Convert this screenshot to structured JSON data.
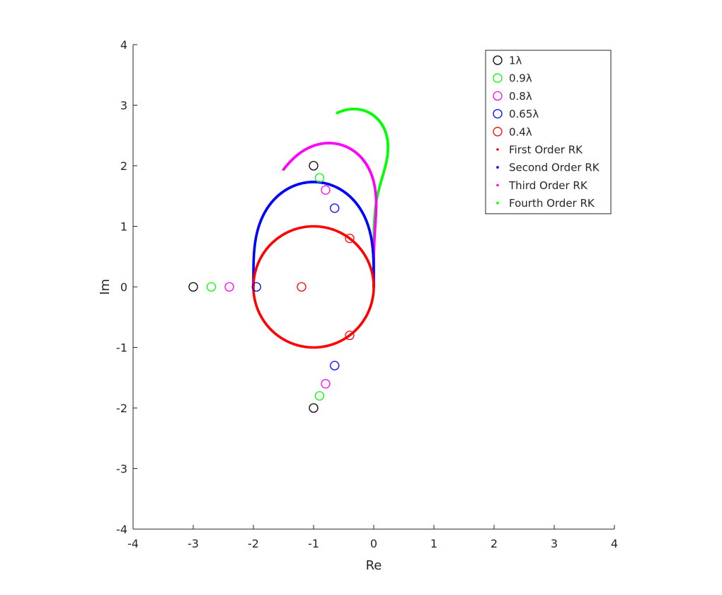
{
  "chart_data": {
    "type": "scatter",
    "xlabel": "Re",
    "ylabel": "Im",
    "xlim": [
      -4,
      4
    ],
    "ylim": [
      -4,
      4
    ],
    "x_ticks": [
      "-4",
      "-3",
      "-2",
      "-1",
      "0",
      "1",
      "2",
      "3",
      "4"
    ],
    "y_ticks": [
      "-4",
      "-3",
      "-2",
      "-1",
      "0",
      "1",
      "2",
      "3",
      "4"
    ],
    "grid": false,
    "legend_position": "top-right",
    "colors": {
      "black": "#000000",
      "green": "#00ff00",
      "magenta": "#ff00ff",
      "blue": "#0000ff",
      "red": "#ff0000"
    },
    "eigenvalue_series": [
      {
        "name": "1λ",
        "color": "#000000",
        "points": [
          [
            -3,
            0
          ],
          [
            -1,
            2
          ],
          [
            -1,
            -2
          ]
        ]
      },
      {
        "name": "0.9λ",
        "color": "#00ff00",
        "points": [
          [
            -2.7,
            0
          ],
          [
            -0.9,
            1.8
          ],
          [
            -0.9,
            -1.8
          ]
        ]
      },
      {
        "name": "0.8λ",
        "color": "#ff00ff",
        "points": [
          [
            -2.4,
            0
          ],
          [
            -0.8,
            1.6
          ],
          [
            -0.8,
            -1.6
          ]
        ]
      },
      {
        "name": "0.65λ",
        "color": "#0000ff",
        "points": [
          [
            -1.95,
            0
          ],
          [
            -0.65,
            1.3
          ],
          [
            -0.65,
            -1.3
          ]
        ]
      },
      {
        "name": "0.4λ",
        "color": "#ff0000",
        "points": [
          [
            -1.2,
            0
          ],
          [
            -0.4,
            0.8
          ],
          [
            -0.4,
            -0.8
          ]
        ]
      }
    ],
    "stability_boundaries": [
      {
        "name": "First Order RK",
        "color": "#ff0000",
        "order": 1
      },
      {
        "name": "Second Order RK",
        "color": "#0000ff",
        "order": 2
      },
      {
        "name": "Third Order RK",
        "color": "#ff00ff",
        "order": 3
      },
      {
        "name": "Fourth Order RK",
        "color": "#00ff00",
        "order": 4
      }
    ],
    "legend": [
      {
        "label": "1λ",
        "marker": "circle",
        "color": "#000000"
      },
      {
        "label": "0.9λ",
        "marker": "circle",
        "color": "#00ff00"
      },
      {
        "label": "0.8λ",
        "marker": "circle",
        "color": "#ff00ff"
      },
      {
        "label": "0.65λ",
        "marker": "circle",
        "color": "#0000ff"
      },
      {
        "label": "0.4λ",
        "marker": "circle",
        "color": "#ff0000"
      },
      {
        "label": "First Order RK",
        "marker": "dot",
        "color": "#ff0000"
      },
      {
        "label": "Second Order RK",
        "marker": "dot",
        "color": "#0000ff"
      },
      {
        "label": "Third Order RK",
        "marker": "dot",
        "color": "#ff00ff"
      },
      {
        "label": "Fourth Order RK",
        "marker": "dot",
        "color": "#00ff00"
      }
    ]
  }
}
